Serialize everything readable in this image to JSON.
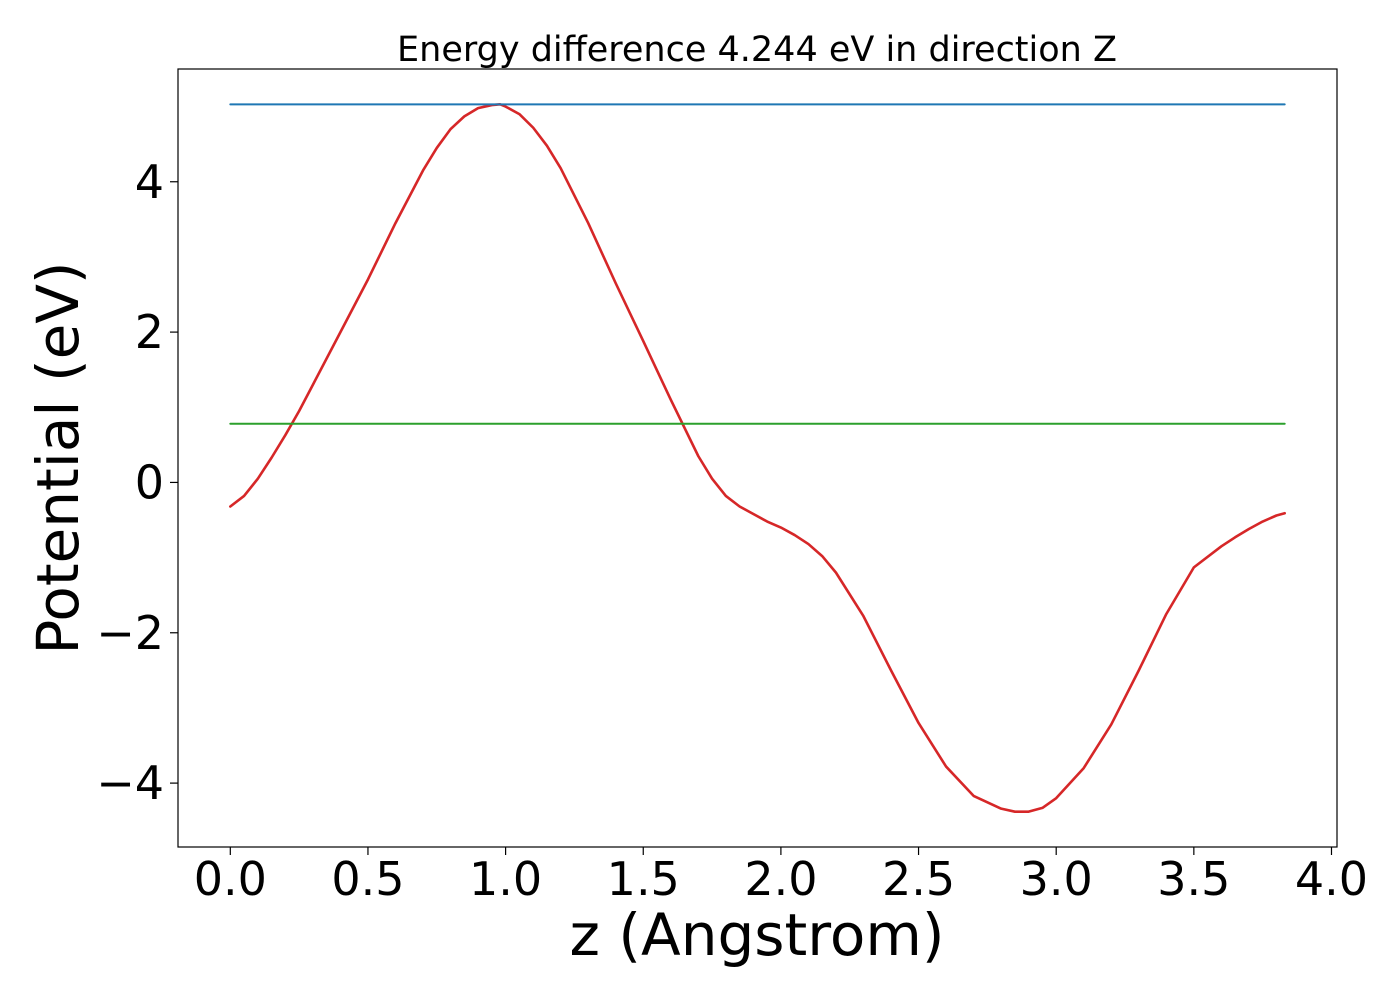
{
  "chart_data": {
    "type": "line",
    "title": "Energy difference 4.244 eV in direction Z",
    "xlabel": "z (Angstrom)",
    "ylabel": "Potential (eV)",
    "xlim": [
      -0.19,
      4.02
    ],
    "ylim": [
      -4.85,
      5.5
    ],
    "xticks": [
      0.0,
      0.5,
      1.0,
      1.5,
      2.0,
      2.5,
      3.0,
      3.5,
      4.0
    ],
    "xtick_labels": [
      "0.0",
      "0.5",
      "1.0",
      "1.5",
      "2.0",
      "2.5",
      "3.0",
      "3.5",
      "4.0"
    ],
    "yticks": [
      -4,
      -2,
      0,
      2,
      4
    ],
    "ytick_labels": [
      "−4",
      "−2",
      "0",
      "2",
      "4"
    ],
    "grid": false,
    "legend": "none",
    "series": [
      {
        "color": "#d62728",
        "x": [
          0.0,
          0.05,
          0.1,
          0.15,
          0.2,
          0.25,
          0.3,
          0.4,
          0.5,
          0.6,
          0.7,
          0.75,
          0.8,
          0.85,
          0.9,
          0.95,
          0.98,
          1.0,
          1.05,
          1.1,
          1.15,
          1.2,
          1.3,
          1.4,
          1.5,
          1.6,
          1.7,
          1.75,
          1.8,
          1.85,
          1.9,
          1.95,
          2.0,
          2.05,
          2.1,
          2.15,
          2.2,
          2.3,
          2.4,
          2.5,
          2.6,
          2.7,
          2.8,
          2.85,
          2.9,
          2.95,
          3.0,
          3.1,
          3.2,
          3.3,
          3.4,
          3.5,
          3.6,
          3.65,
          3.7,
          3.75,
          3.8,
          3.83
        ],
        "values": [
          -0.32,
          -0.18,
          0.05,
          0.33,
          0.63,
          0.95,
          1.3,
          2.0,
          2.7,
          3.45,
          4.15,
          4.45,
          4.7,
          4.87,
          4.98,
          5.02,
          5.03,
          5.0,
          4.9,
          4.72,
          4.48,
          4.18,
          3.45,
          2.65,
          1.88,
          1.1,
          0.35,
          0.05,
          -0.18,
          -0.32,
          -0.42,
          -0.52,
          -0.6,
          -0.7,
          -0.82,
          -0.98,
          -1.2,
          -1.78,
          -2.5,
          -3.2,
          -3.78,
          -4.17,
          -4.34,
          -4.38,
          -4.38,
          -4.33,
          -4.2,
          -3.8,
          -3.22,
          -2.5,
          -1.75,
          -1.13,
          -0.85,
          -0.73,
          -0.62,
          -0.52,
          -0.44,
          -0.41
        ]
      },
      {
        "color": "#1f77b4",
        "x": [
          0.0,
          3.83
        ],
        "values": [
          5.03,
          5.03
        ]
      },
      {
        "color": "#2ca02c",
        "x": [
          0.0,
          3.83
        ],
        "values": [
          0.78,
          0.78
        ]
      }
    ]
  }
}
